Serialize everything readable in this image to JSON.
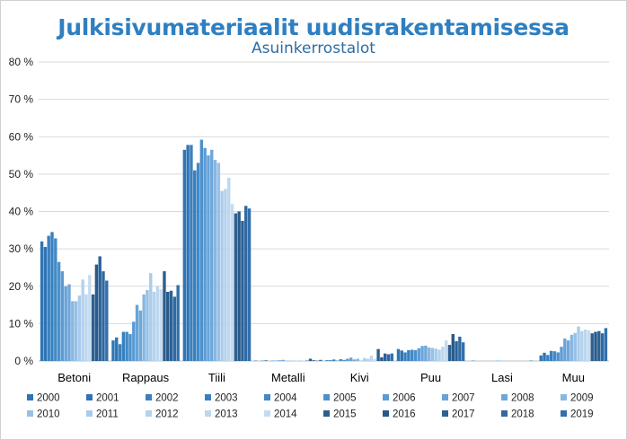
{
  "chart_data": {
    "type": "bar",
    "title": "Julkisivumateriaalit uudisrakentamisessa",
    "subtitle": "Asuinkerrostalot",
    "xlabel": "",
    "ylabel": "",
    "ylim": [
      0,
      80
    ],
    "y_ticks": [
      "0 %",
      "10 %",
      "20 %",
      "30 %",
      "40 %",
      "50 %",
      "60 %",
      "70 %",
      "80 %"
    ],
    "grid": true,
    "legend_position": "bottom",
    "categories": [
      "Betoni",
      "Rappaus",
      "Tiili",
      "Metalli",
      "Kivi",
      "Puu",
      "Lasi",
      "Muu"
    ],
    "series": [
      {
        "name": "2000",
        "color": "#2f75b5",
        "values": [
          32.0,
          5.5,
          56.5,
          0.1,
          0.2,
          3.2,
          0.0,
          1.5
        ]
      },
      {
        "name": "2001",
        "color": "#2e74b4",
        "values": [
          30.5,
          6.3,
          57.8,
          0.0,
          0.2,
          2.8,
          0.1,
          2.2
        ]
      },
      {
        "name": "2002",
        "color": "#3b7fbd",
        "values": [
          33.5,
          4.5,
          57.8,
          0.1,
          0.4,
          2.3,
          0.0,
          1.6
        ]
      },
      {
        "name": "2003",
        "color": "#3780bf",
        "values": [
          34.5,
          7.8,
          51.0,
          0.2,
          0.1,
          2.9,
          0.0,
          2.7
        ]
      },
      {
        "name": "2004",
        "color": "#4289c6",
        "values": [
          32.8,
          7.8,
          53.0,
          0.0,
          0.5,
          3.0,
          0.0,
          2.6
        ]
      },
      {
        "name": "2005",
        "color": "#4c91cb",
        "values": [
          26.5,
          7.2,
          59.2,
          0.1,
          0.3,
          2.9,
          0.0,
          2.3
        ]
      },
      {
        "name": "2006",
        "color": "#5b9bd5",
        "values": [
          24.0,
          10.5,
          57.0,
          0.1,
          0.6,
          3.4,
          0.0,
          3.8
        ]
      },
      {
        "name": "2007",
        "color": "#68a3d8",
        "values": [
          20.0,
          15.0,
          55.0,
          0.2,
          0.9,
          4.0,
          0.0,
          6.0
        ]
      },
      {
        "name": "2008",
        "color": "#6ea7da",
        "values": [
          20.5,
          13.5,
          56.5,
          0.3,
          0.4,
          4.1,
          0.1,
          5.5
        ]
      },
      {
        "name": "2009",
        "color": "#88b7e1",
        "values": [
          16.0,
          17.8,
          53.8,
          0.1,
          0.6,
          3.6,
          0.1,
          7.0
        ]
      },
      {
        "name": "2010",
        "color": "#98c1e5",
        "values": [
          16.0,
          19.0,
          53.0,
          0.1,
          0.1,
          3.5,
          0.0,
          7.5
        ]
      },
      {
        "name": "2011",
        "color": "#a9cceb",
        "values": [
          17.5,
          23.5,
          45.5,
          0.1,
          0.8,
          3.3,
          0.0,
          9.2
        ]
      },
      {
        "name": "2012",
        "color": "#b4d2ee",
        "values": [
          21.8,
          18.5,
          46.0,
          0.1,
          0.6,
          3.0,
          0.0,
          8.0
        ]
      },
      {
        "name": "2013",
        "color": "#bdd7ee",
        "values": [
          17.8,
          20.0,
          49.0,
          0.0,
          1.4,
          3.8,
          0.0,
          8.4
        ]
      },
      {
        "name": "2014",
        "color": "#c5dcf0",
        "values": [
          23.0,
          19.2,
          42.0,
          0.1,
          0.5,
          5.5,
          0.0,
          8.2
        ]
      },
      {
        "name": "2015",
        "color": "#2c5f8e",
        "values": [
          17.8,
          24.0,
          39.5,
          0.1,
          3.2,
          4.3,
          0.0,
          7.4
        ]
      },
      {
        "name": "2016",
        "color": "#27598a",
        "values": [
          25.8,
          18.5,
          40.0,
          0.6,
          1.0,
          7.2,
          0.0,
          7.8
        ]
      },
      {
        "name": "2017",
        "color": "#2a6296",
        "values": [
          28.0,
          18.8,
          37.5,
          0.2,
          2.0,
          5.3,
          0.0,
          8.0
        ]
      },
      {
        "name": "2018",
        "color": "#3069a1",
        "values": [
          24.0,
          17.2,
          41.5,
          0.1,
          1.8,
          6.5,
          0.1,
          7.4
        ]
      },
      {
        "name": "2019",
        "color": "#3270ac",
        "values": [
          21.5,
          20.3,
          40.8,
          0.3,
          2.0,
          5.0,
          0.0,
          8.8
        ]
      }
    ]
  }
}
